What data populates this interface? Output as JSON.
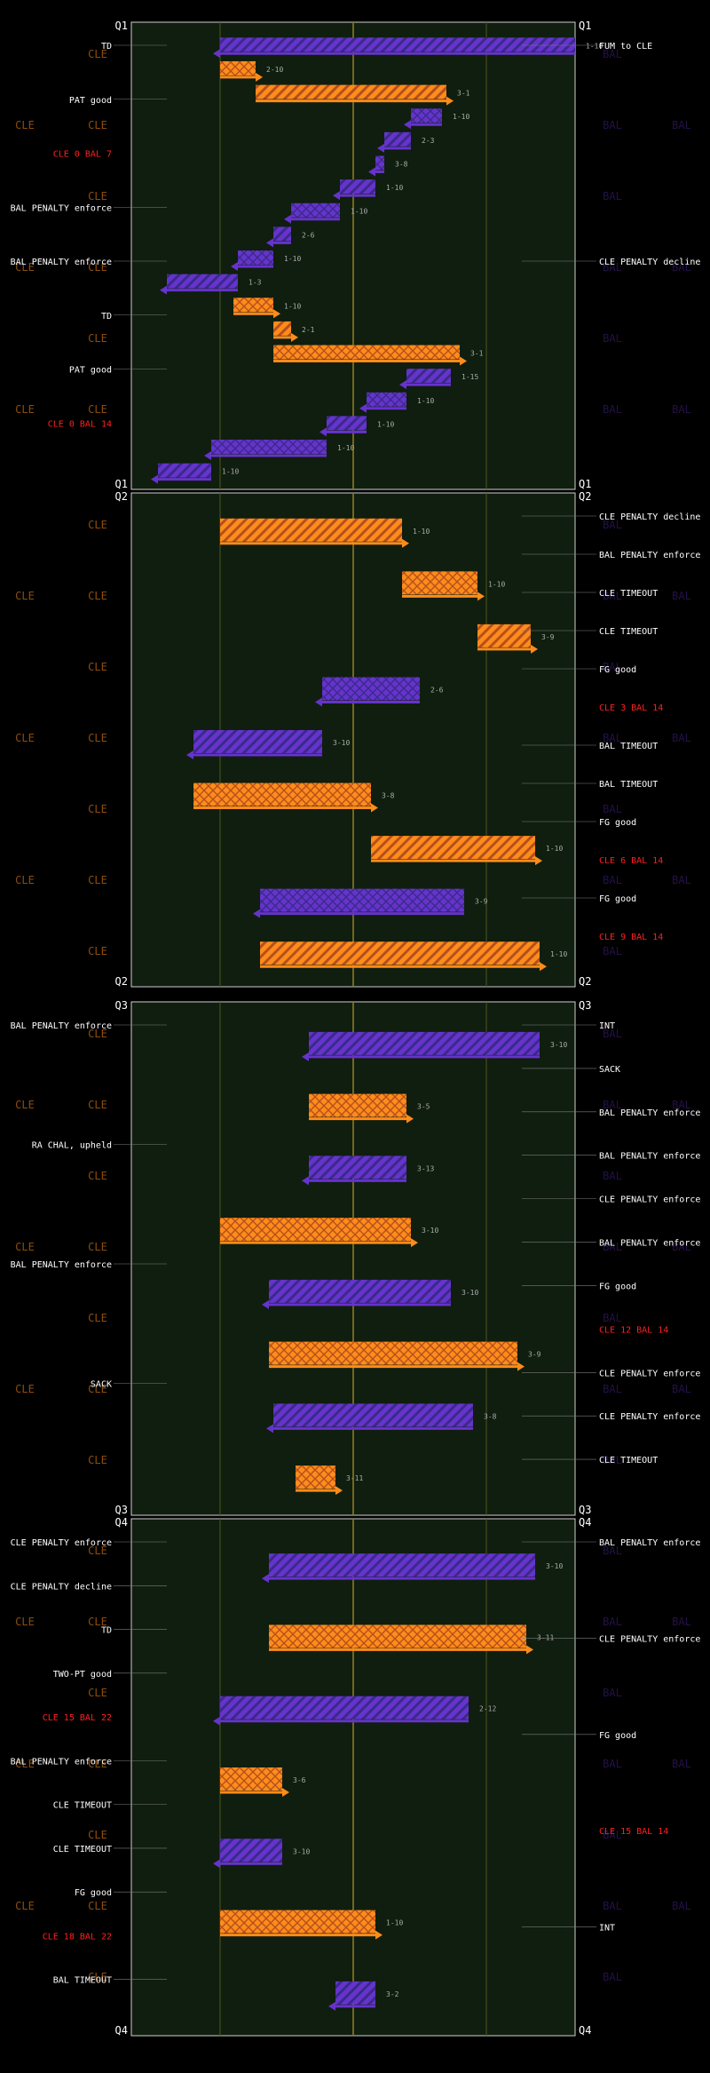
{
  "chart_data": {
    "type": "drive chart",
    "teams": {
      "home": {
        "name": "CLE",
        "color": "#ff8c1a",
        "pattern_color": "#b4501e"
      },
      "away": {
        "name": "BAL",
        "color": "#6633cc",
        "pattern_color": "#3a2a8a"
      }
    },
    "x_axis": {
      "min": 0,
      "max": 100,
      "gridlines": [
        20,
        50,
        80
      ]
    },
    "quarters": [
      {
        "label": "Q1",
        "drives": [
          {
            "team": "BAL",
            "start": 100,
            "end": 20,
            "down": "1-10"
          },
          {
            "team": "CLE",
            "start": 20,
            "end": 28,
            "down": "2-10"
          },
          {
            "team": "CLE",
            "start": 28,
            "end": 71,
            "down": "3-1"
          },
          {
            "team": "BAL",
            "start": 70,
            "end": 63,
            "down": "1-10"
          },
          {
            "team": "BAL",
            "start": 63,
            "end": 57,
            "down": "2-3"
          },
          {
            "team": "BAL",
            "start": 57,
            "end": 55,
            "down": "3-8"
          },
          {
            "team": "BAL",
            "start": 55,
            "end": 47,
            "down": "1-10"
          },
          {
            "team": "BAL",
            "start": 47,
            "end": 36,
            "down": "1-10"
          },
          {
            "team": "BAL",
            "start": 36,
            "end": 32,
            "down": "2-6"
          },
          {
            "team": "BAL",
            "start": 32,
            "end": 24,
            "down": "1-10"
          },
          {
            "team": "BAL",
            "start": 24,
            "end": 8,
            "down": "1-3"
          },
          {
            "team": "CLE",
            "start": 23,
            "end": 32,
            "down": "1-10"
          },
          {
            "team": "CLE",
            "start": 32,
            "end": 36,
            "down": "2-1"
          },
          {
            "team": "CLE",
            "start": 32,
            "end": 74,
            "down": "3-1"
          },
          {
            "team": "BAL",
            "start": 72,
            "end": 62,
            "down": "1-15"
          },
          {
            "team": "BAL",
            "start": 62,
            "end": 53,
            "down": "1-10"
          },
          {
            "team": "BAL",
            "start": 53,
            "end": 44,
            "down": "1-10"
          },
          {
            "team": "BAL",
            "start": 44,
            "end": 18,
            "down": "1-10"
          },
          {
            "team": "BAL",
            "start": 18,
            "end": 6,
            "down": "1-10"
          }
        ],
        "annotations": [
          {
            "side": "left",
            "text": "TD"
          },
          {
            "side": "left",
            "text": "PAT good"
          },
          {
            "side": "left",
            "text": "CLE 0 BAL 7",
            "score": true
          },
          {
            "side": "right",
            "text": "FUM to CLE"
          },
          {
            "side": "right",
            "text": "CLE PENALTY decline"
          },
          {
            "side": "left",
            "text": "BAL PENALTY enforce"
          },
          {
            "side": "left",
            "text": "BAL PENALTY enforce"
          },
          {
            "side": "left",
            "text": "TD"
          },
          {
            "side": "left",
            "text": "PAT good"
          },
          {
            "side": "left",
            "text": "CLE 0 BAL 14",
            "score": true
          }
        ]
      },
      {
        "label": "Q2",
        "drives": [
          {
            "team": "CLE",
            "start": 20,
            "end": 61,
            "down": "1-10"
          },
          {
            "team": "CLE",
            "start": 61,
            "end": 78,
            "down": "1-10"
          },
          {
            "team": "CLE",
            "start": 78,
            "end": 90,
            "down": "3-9"
          },
          {
            "team": "BAL",
            "start": 65,
            "end": 43,
            "down": "2-6"
          },
          {
            "team": "BAL",
            "start": 43,
            "end": 14,
            "down": "3-10"
          },
          {
            "team": "CLE",
            "start": 14,
            "end": 54,
            "down": "3-8"
          },
          {
            "team": "CLE",
            "start": 54,
            "end": 91,
            "down": "1-10"
          },
          {
            "team": "BAL",
            "start": 75,
            "end": 29,
            "down": "3-9"
          },
          {
            "team": "CLE",
            "start": 29,
            "end": 92,
            "down": "1-10"
          }
        ],
        "annotations": [
          {
            "side": "right",
            "text": "CLE PENALTY decline"
          },
          {
            "side": "right",
            "text": "BAL PENALTY enforce"
          },
          {
            "side": "right",
            "text": "CLE TIMEOUT"
          },
          {
            "side": "right",
            "text": "CLE TIMEOUT"
          },
          {
            "side": "right",
            "text": "FG good"
          },
          {
            "side": "right",
            "text": "CLE 3 BAL 14",
            "score": true
          },
          {
            "side": "right",
            "text": "BAL TIMEOUT"
          },
          {
            "side": "right",
            "text": "BAL TIMEOUT"
          },
          {
            "side": "right",
            "text": "FG good"
          },
          {
            "side": "right",
            "text": "CLE 6 BAL 14",
            "score": true
          },
          {
            "side": "right",
            "text": "FG good"
          },
          {
            "side": "right",
            "text": "CLE 9 BAL 14",
            "score": true
          }
        ]
      },
      {
        "label": "Q3",
        "drives": [
          {
            "team": "BAL",
            "start": 92,
            "end": 40,
            "down": "3-10"
          },
          {
            "team": "CLE",
            "start": 40,
            "end": 62,
            "down": "3-5"
          },
          {
            "team": "BAL",
            "start": 62,
            "end": 40,
            "down": "3-13"
          },
          {
            "team": "CLE",
            "start": 20,
            "end": 63,
            "down": "3-10"
          },
          {
            "team": "BAL",
            "start": 72,
            "end": 31,
            "down": "3-10"
          },
          {
            "team": "CLE",
            "start": 31,
            "end": 87,
            "down": "3-9"
          },
          {
            "team": "BAL",
            "start": 77,
            "end": 32,
            "down": "3-8"
          },
          {
            "team": "CLE",
            "start": 37,
            "end": 46,
            "down": "3-11"
          }
        ],
        "annotations": [
          {
            "side": "left",
            "text": "BAL PENALTY enforce"
          },
          {
            "side": "left",
            "text": "RA CHAL, upheld"
          },
          {
            "side": "left",
            "text": "BAL PENALTY enforce"
          },
          {
            "side": "right",
            "text": "INT"
          },
          {
            "side": "right",
            "text": "SACK"
          },
          {
            "side": "right",
            "text": "BAL PENALTY enforce"
          },
          {
            "side": "left",
            "text": "SACK"
          },
          {
            "side": "right",
            "text": "BAL PENALTY enforce"
          },
          {
            "side": "right",
            "text": "CLE PENALTY enforce"
          },
          {
            "side": "right",
            "text": "BAL PENALTY enforce"
          },
          {
            "side": "right",
            "text": "FG good"
          },
          {
            "side": "right",
            "text": "CLE 12 BAL 14",
            "score": true
          },
          {
            "side": "right",
            "text": "CLE PENALTY enforce"
          },
          {
            "side": "right",
            "text": "CLE PENALTY enforce"
          },
          {
            "side": "right",
            "text": "CLE TIMEOUT"
          }
        ]
      },
      {
        "label": "Q4",
        "drives": [
          {
            "team": "BAL",
            "start": 91,
            "end": 31,
            "down": "3-10"
          },
          {
            "team": "CLE",
            "start": 31,
            "end": 89,
            "down": "3-11"
          },
          {
            "team": "BAL",
            "start": 76,
            "end": 20,
            "down": "2-12"
          },
          {
            "team": "CLE",
            "start": 20,
            "end": 34,
            "down": "3-6"
          },
          {
            "team": "BAL",
            "start": 34,
            "end": 20,
            "down": "3-10"
          },
          {
            "team": "CLE",
            "start": 20,
            "end": 55,
            "down": "1-10"
          },
          {
            "team": "BAL",
            "start": 55,
            "end": 46,
            "down": "3-2"
          }
        ],
        "annotations": [
          {
            "side": "right",
            "text": "BAL PENALTY enforce"
          },
          {
            "side": "right",
            "text": "CLE PENALTY enforce"
          },
          {
            "side": "right",
            "text": "FG good"
          },
          {
            "side": "right",
            "text": "CLE 15 BAL 14",
            "score": true
          },
          {
            "side": "left",
            "text": "CLE PENALTY enforce"
          },
          {
            "side": "left",
            "text": "CLE PENALTY decline"
          },
          {
            "side": "left",
            "text": "TD"
          },
          {
            "side": "left",
            "text": "TWO-PT good"
          },
          {
            "side": "left",
            "text": "CLE 15 BAL 22",
            "score": true
          },
          {
            "side": "left",
            "text": "BAL PENALTY enforce"
          },
          {
            "side": "left",
            "text": "CLE TIMEOUT"
          },
          {
            "side": "left",
            "text": "CLE TIMEOUT"
          },
          {
            "side": "left",
            "text": "FG good"
          },
          {
            "side": "left",
            "text": "CLE 18 BAL 22",
            "score": true
          },
          {
            "side": "right",
            "text": "INT"
          },
          {
            "side": "left",
            "text": "BAL TIMEOUT"
          }
        ]
      }
    ]
  }
}
